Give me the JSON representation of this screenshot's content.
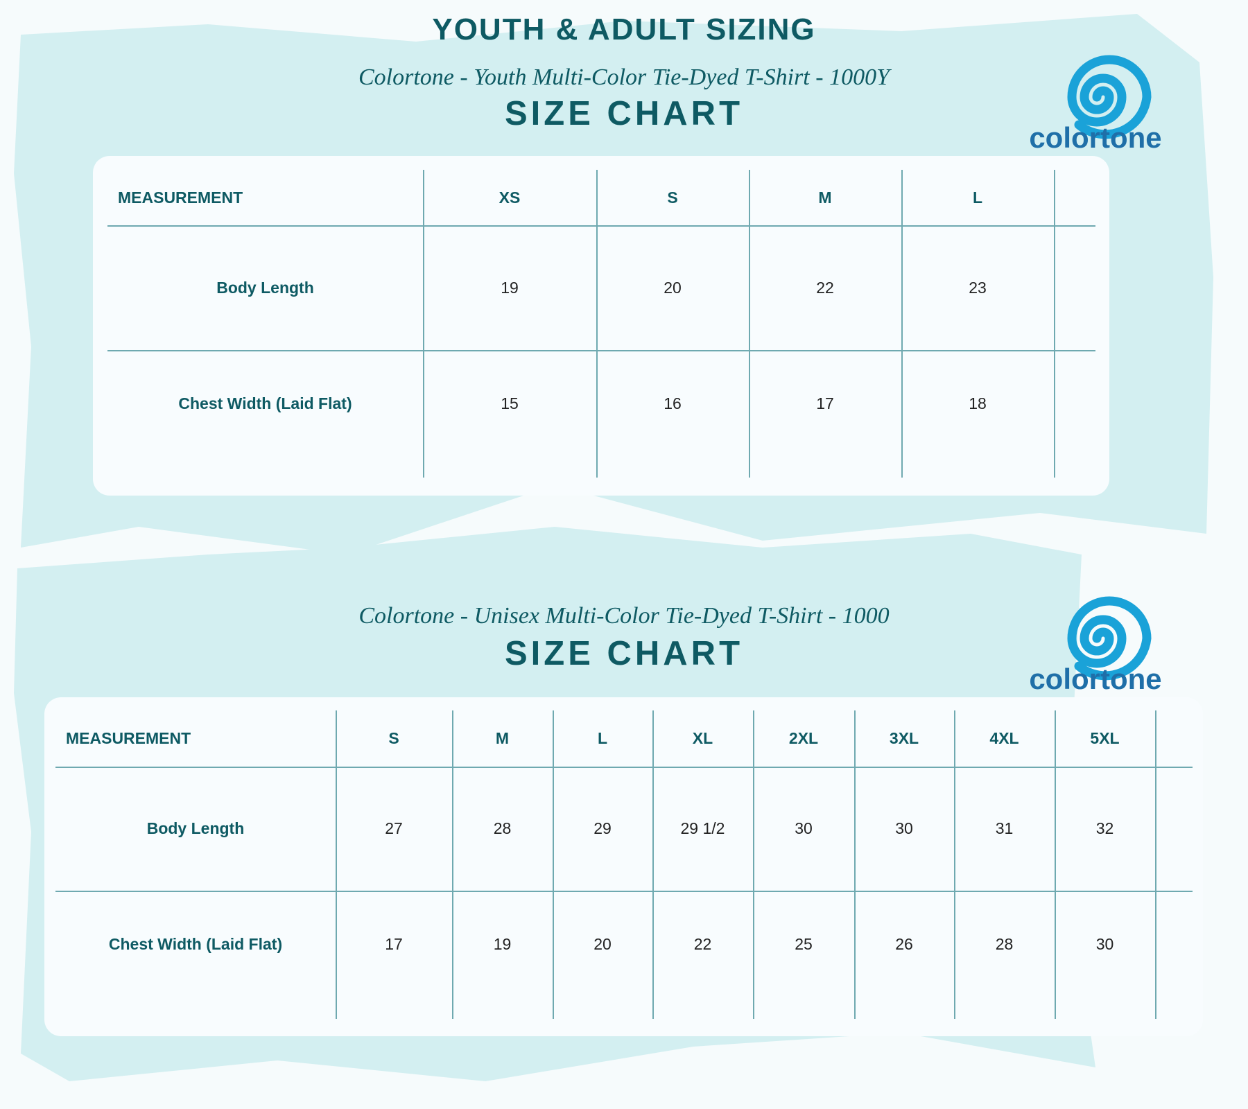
{
  "header": {
    "title": "YOUTH & ADULT SIZING"
  },
  "sections": [
    {
      "subtitle": "Colortone - Youth Multi-Color Tie-Dyed T-Shirt - 1000Y",
      "heading": "SIZE CHART",
      "logo": "colortone",
      "table": {
        "columns": [
          "MEASUREMENT",
          "XS",
          "S",
          "M",
          "L"
        ],
        "rows": [
          [
            "Body Length",
            "19",
            "20",
            "22",
            "23"
          ],
          [
            "Chest Width (Laid Flat)",
            "15",
            "16",
            "17",
            "18"
          ]
        ]
      }
    },
    {
      "subtitle": "Colortone - Unisex Multi-Color Tie-Dyed T-Shirt - 1000",
      "heading": "SIZE CHART",
      "logo": "colortone",
      "table": {
        "columns": [
          "MEASUREMENT",
          "S",
          "M",
          "L",
          "XL",
          "2XL",
          "3XL",
          "4XL",
          "5XL"
        ],
        "rows": [
          [
            "Body Length",
            "27",
            "28",
            "29",
            "29 1/2",
            "30",
            "30",
            "31",
            "32"
          ],
          [
            "Chest Width (Laid Flat)",
            "17",
            "19",
            "20",
            "22",
            "25",
            "26",
            "28",
            "30"
          ]
        ]
      }
    }
  ]
}
